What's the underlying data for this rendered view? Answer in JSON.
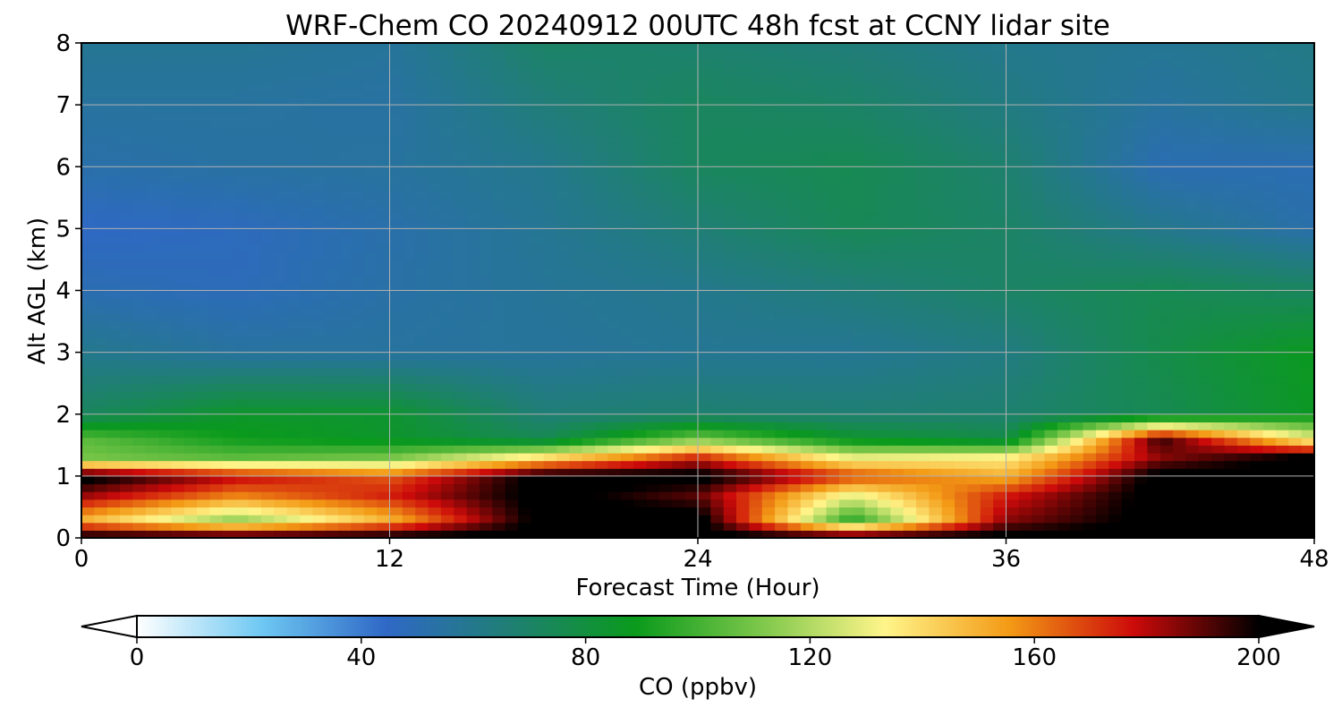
{
  "chart_data": {
    "type": "heatmap",
    "title": "WRF-Chem CO  20240912 00UTC 48h fcst at CCNY lidar site",
    "xlabel": "Forecast Time (Hour)",
    "ylabel": "Alt AGL (km)",
    "xlim": [
      0,
      48
    ],
    "ylim": [
      0,
      8
    ],
    "x_ticks": [
      "0",
      "12",
      "24",
      "36",
      "48"
    ],
    "y_ticks": [
      "0",
      "1",
      "2",
      "3",
      "4",
      "5",
      "6",
      "7",
      "8"
    ],
    "grid": true,
    "colorbar": {
      "label": "CO  (ppbv)",
      "range": [
        0,
        200
      ],
      "ticks": [
        "0",
        "40",
        "80",
        "120",
        "160",
        "200"
      ],
      "extend": "both",
      "colors": [
        "#ffffff",
        "#6ec8f2",
        "#2f68c6",
        "#1f7f73",
        "#0a9a1c",
        "#7cc74a",
        "#fff58a",
        "#f39a15",
        "#cc0a0a",
        "#000000"
      ]
    },
    "x_hours": [
      0,
      6,
      12,
      18,
      24,
      30,
      36,
      42,
      48
    ],
    "z_km": [
      0,
      0.3,
      0.7,
      1.0,
      1.3,
      1.6,
      2.0,
      3.0,
      4.0,
      5.0,
      6.0,
      7.0,
      8.0
    ],
    "co_ppbv": [
      [
        205,
        205,
        205,
        205,
        205,
        205,
        205,
        205,
        205
      ],
      [
        150,
        115,
        150,
        205,
        205,
        95,
        185,
        205,
        205
      ],
      [
        185,
        160,
        175,
        205,
        190,
        130,
        175,
        205,
        205
      ],
      [
        205,
        180,
        165,
        205,
        205,
        170,
        150,
        205,
        205
      ],
      [
        110,
        105,
        110,
        140,
        175,
        130,
        135,
        185,
        205
      ],
      [
        105,
        90,
        85,
        75,
        110,
        85,
        78,
        195,
        130
      ],
      [
        72,
        85,
        84,
        66,
        68,
        67,
        68,
        75,
        87
      ],
      [
        60,
        55,
        55,
        56,
        58,
        58,
        63,
        77,
        88
      ],
      [
        50,
        48,
        53,
        57,
        60,
        65,
        70,
        75,
        72
      ],
      [
        45,
        47,
        52,
        58,
        66,
        74,
        70,
        60,
        52
      ],
      [
        52,
        54,
        55,
        60,
        72,
        75,
        68,
        50,
        50
      ],
      [
        55,
        55,
        54,
        65,
        72,
        70,
        63,
        55,
        60
      ],
      [
        58,
        58,
        56,
        70,
        68,
        65,
        60,
        58,
        62
      ]
    ]
  }
}
